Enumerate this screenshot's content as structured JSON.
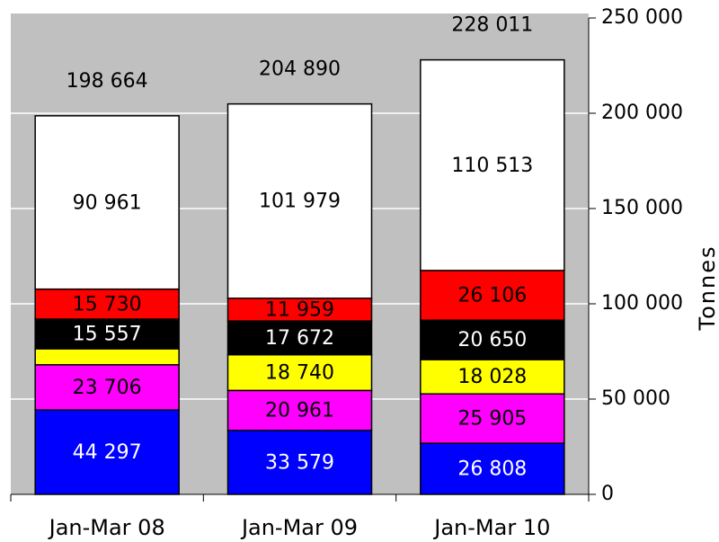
{
  "chart_data": {
    "type": "stacked_bar",
    "categories": [
      "Jan-Mar 08",
      "Jan-Mar 09",
      "Jan-Mar 10"
    ],
    "series": [
      {
        "color": "#0000ff",
        "label_color": "#ffffff",
        "values": [
          44297,
          33579,
          26808
        ],
        "value_labels": [
          "44 297",
          "33 579",
          "26 808"
        ]
      },
      {
        "color": "#ff00ff",
        "label_color": "#000000",
        "values": [
          23706,
          20961,
          25905
        ],
        "value_labels": [
          "23 706",
          "20 961",
          "25 905"
        ]
      },
      {
        "color": "#ffff00",
        "label_color": "#000000",
        "values": [
          8413,
          18740,
          18028
        ],
        "value_labels": [
          null,
          "18 740",
          "18 028"
        ]
      },
      {
        "color": "#000000",
        "label_color": "#ffffff",
        "values": [
          15557,
          17672,
          20650
        ],
        "value_labels": [
          "15 557",
          "17 672",
          "20 650"
        ]
      },
      {
        "color": "#ff0000",
        "label_color": "#000000",
        "values": [
          15730,
          11959,
          26106
        ],
        "value_labels": [
          "15 730",
          "11 959",
          "26 106"
        ]
      },
      {
        "color": "#ffffff",
        "label_color": "#000000",
        "values": [
          90961,
          101979,
          110513
        ],
        "value_labels": [
          "90 961",
          "101 979",
          "110 513"
        ]
      }
    ],
    "totals": [
      198664,
      204890,
      228011
    ],
    "total_labels": [
      "198 664",
      "204 890",
      "228 011"
    ],
    "y_label": "Tonnes",
    "ylim": [
      0,
      250000
    ],
    "yticks": [
      0,
      {
        "value": 50000,
        "label": "50 000"
      },
      {
        "value": 100000,
        "label": "100 000"
      },
      {
        "value": 150000,
        "label": "150 000"
      },
      {
        "value": 200000,
        "label": "200 000"
      },
      {
        "value": 250000,
        "label": "250 000"
      }
    ],
    "grid": true,
    "plot_background": "#c0c0c0"
  }
}
